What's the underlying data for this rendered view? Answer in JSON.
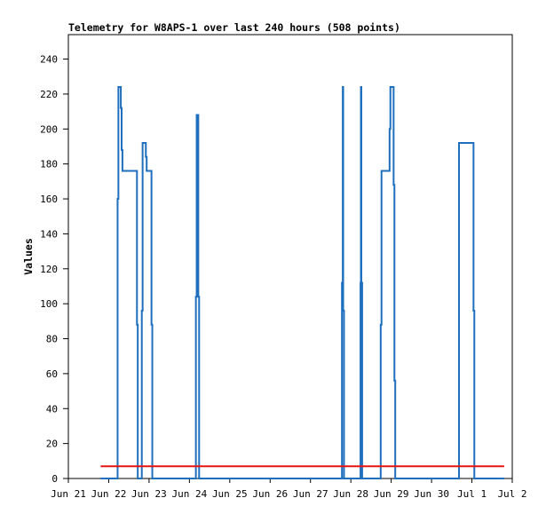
{
  "chart_data": {
    "type": "line",
    "title": "Telemetry for W8APS-1 over last 240 hours (508 points)",
    "xlabel": "",
    "ylabel": "Values",
    "ylim": [
      0,
      254
    ],
    "yticks": [
      0,
      20,
      40,
      60,
      80,
      100,
      120,
      140,
      160,
      180,
      200,
      220,
      240
    ],
    "xlim": [
      0,
      11
    ],
    "xticks": [
      {
        "x": 0,
        "label": "Jun 21"
      },
      {
        "x": 1,
        "label": "Jun 22"
      },
      {
        "x": 2,
        "label": "Jun 23"
      },
      {
        "x": 3,
        "label": "Jun 24"
      },
      {
        "x": 4,
        "label": "Jun 25"
      },
      {
        "x": 5,
        "label": "Jun 26"
      },
      {
        "x": 6,
        "label": "Jun 27"
      },
      {
        "x": 7,
        "label": "Jun 28"
      },
      {
        "x": 8,
        "label": "Jun 29"
      },
      {
        "x": 9,
        "label": "Jun 30"
      },
      {
        "x": 10,
        "label": "Jul 1"
      },
      {
        "x": 11,
        "label": "Jul 2"
      }
    ],
    "grid": false,
    "series": [
      {
        "color": "#1f6fbf",
        "points": [
          [
            0.8,
            0
          ],
          [
            1.22,
            0
          ],
          [
            1.22,
            160
          ],
          [
            1.24,
            160
          ],
          [
            1.24,
            224
          ],
          [
            1.3,
            224
          ],
          [
            1.3,
            212
          ],
          [
            1.32,
            212
          ],
          [
            1.32,
            188
          ],
          [
            1.34,
            188
          ],
          [
            1.34,
            176
          ],
          [
            1.7,
            176
          ],
          [
            1.7,
            88
          ],
          [
            1.72,
            88
          ],
          [
            1.72,
            0
          ],
          [
            1.82,
            0
          ],
          [
            1.82,
            96
          ],
          [
            1.84,
            96
          ],
          [
            1.84,
            192
          ],
          [
            1.92,
            192
          ],
          [
            1.92,
            184
          ],
          [
            1.94,
            184
          ],
          [
            1.94,
            176
          ],
          [
            2.06,
            176
          ],
          [
            2.06,
            88
          ],
          [
            2.08,
            88
          ],
          [
            2.08,
            0
          ],
          [
            3.16,
            0
          ],
          [
            3.16,
            104
          ],
          [
            3.18,
            104
          ],
          [
            3.18,
            208
          ],
          [
            3.22,
            208
          ],
          [
            3.22,
            104
          ],
          [
            3.24,
            104
          ],
          [
            3.24,
            0
          ],
          [
            6.78,
            0
          ],
          [
            6.78,
            112
          ],
          [
            6.8,
            112
          ],
          [
            6.8,
            224
          ],
          [
            6.81,
            224
          ],
          [
            6.81,
            96
          ],
          [
            6.83,
            96
          ],
          [
            6.83,
            0
          ],
          [
            7.24,
            0
          ],
          [
            7.24,
            112
          ],
          [
            7.25,
            112
          ],
          [
            7.25,
            224
          ],
          [
            7.26,
            224
          ],
          [
            7.26,
            112
          ],
          [
            7.28,
            112
          ],
          [
            7.28,
            0
          ],
          [
            7.74,
            0
          ],
          [
            7.74,
            88
          ],
          [
            7.76,
            88
          ],
          [
            7.76,
            176
          ],
          [
            7.96,
            176
          ],
          [
            7.96,
            200
          ],
          [
            7.98,
            200
          ],
          [
            7.98,
            224
          ],
          [
            8.06,
            224
          ],
          [
            8.06,
            168
          ],
          [
            8.08,
            168
          ],
          [
            8.08,
            56
          ],
          [
            8.1,
            56
          ],
          [
            8.1,
            0
          ],
          [
            9.68,
            0
          ],
          [
            9.68,
            192
          ],
          [
            10.04,
            192
          ],
          [
            10.04,
            96
          ],
          [
            10.06,
            96
          ],
          [
            10.06,
            0
          ],
          [
            10.8,
            0
          ]
        ]
      },
      {
        "color": "#e8140f",
        "points": [
          [
            0.8,
            7
          ],
          [
            10.8,
            7
          ]
        ]
      }
    ]
  }
}
